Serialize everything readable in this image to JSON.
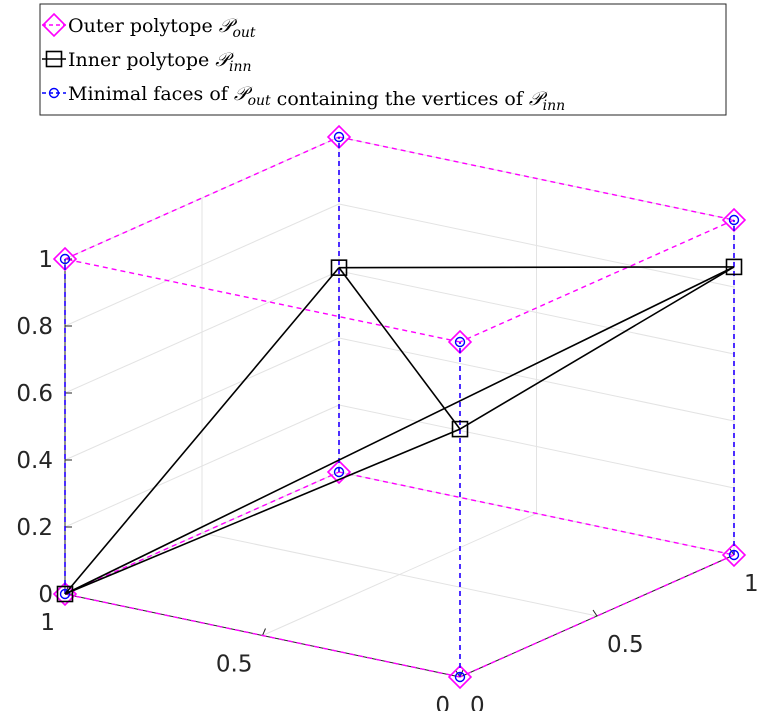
{
  "chart_data": {
    "type": "line",
    "projection": "3d",
    "legend": {
      "placement": "top-left",
      "entries": [
        {
          "prefix": "Outer polytope ",
          "symbol": "𝒫",
          "sub": "out",
          "suffix": "",
          "color": "#ff00ff",
          "marker": "diamond",
          "line": "dashed"
        },
        {
          "prefix": "Inner polytope ",
          "symbol": "𝒫",
          "sub": "inn",
          "suffix": "",
          "color": "#000000",
          "marker": "square",
          "line": "solid"
        },
        {
          "prefix": "Minimal faces of ",
          "symbol": "𝒫",
          "sub": "out",
          "suffix": " containing the vertices of ",
          "symbol2": "𝒫",
          "sub2": "inn",
          "color": "#0000ff",
          "marker": "circle",
          "line": "dashed"
        }
      ]
    },
    "axes": {
      "x": {
        "ticks": [
          0,
          0.5,
          1
        ],
        "tick_labels": [
          "0",
          "0.5",
          "1"
        ],
        "lim": [
          0,
          1
        ]
      },
      "y": {
        "ticks": [
          0,
          0.5,
          1
        ],
        "tick_labels": [
          "0",
          "0.5",
          "1"
        ],
        "lim": [
          0,
          1
        ]
      },
      "z": {
        "ticks": [
          0,
          0.2,
          0.4,
          0.6,
          0.8,
          1
        ],
        "tick_labels": [
          "0",
          "0.2",
          "0.4",
          "0.6",
          "0.8",
          "1"
        ],
        "lim": [
          0,
          1
        ]
      },
      "grid": true
    },
    "series": [
      {
        "name": "Outer polytope",
        "color": "#ff00ff",
        "marker": "diamond",
        "vertices": [
          [
            0,
            0,
            0
          ],
          [
            1,
            0,
            0
          ],
          [
            0,
            1,
            0
          ],
          [
            1,
            1,
            0
          ],
          [
            0,
            0,
            1
          ],
          [
            1,
            0,
            1
          ],
          [
            0,
            1,
            1
          ],
          [
            1,
            1,
            1
          ]
        ],
        "edges": [
          [
            0,
            1
          ],
          [
            1,
            3
          ],
          [
            3,
            2
          ],
          [
            2,
            0
          ],
          [
            4,
            5
          ],
          [
            5,
            7
          ],
          [
            7,
            6
          ],
          [
            6,
            4
          ],
          [
            0,
            4
          ],
          [
            1,
            5
          ],
          [
            2,
            6
          ],
          [
            3,
            7
          ]
        ]
      },
      {
        "name": "Inner polytope",
        "color": "#000000",
        "marker": "square",
        "vertices": [
          [
            0,
            0,
            0.74
          ],
          [
            1,
            1,
            0.61
          ],
          [
            0,
            1,
            0.86
          ],
          [
            1,
            0,
            0
          ]
        ],
        "edges": [
          [
            0,
            1
          ],
          [
            0,
            2
          ],
          [
            1,
            2
          ],
          [
            0,
            3
          ],
          [
            1,
            3
          ],
          [
            2,
            3
          ]
        ]
      },
      {
        "name": "Minimal faces",
        "color": "#0000ff",
        "marker": "circle",
        "vertices": [
          [
            0,
            0,
            0
          ],
          [
            0,
            0,
            1
          ],
          [
            1,
            0,
            0
          ],
          [
            1,
            0,
            1
          ],
          [
            0,
            1,
            0
          ],
          [
            0,
            1,
            1
          ],
          [
            1,
            1,
            0
          ],
          [
            1,
            1,
            1
          ]
        ],
        "edges": [
          [
            0,
            1
          ],
          [
            2,
            3
          ],
          [
            4,
            5
          ],
          [
            6,
            7
          ]
        ]
      }
    ]
  }
}
